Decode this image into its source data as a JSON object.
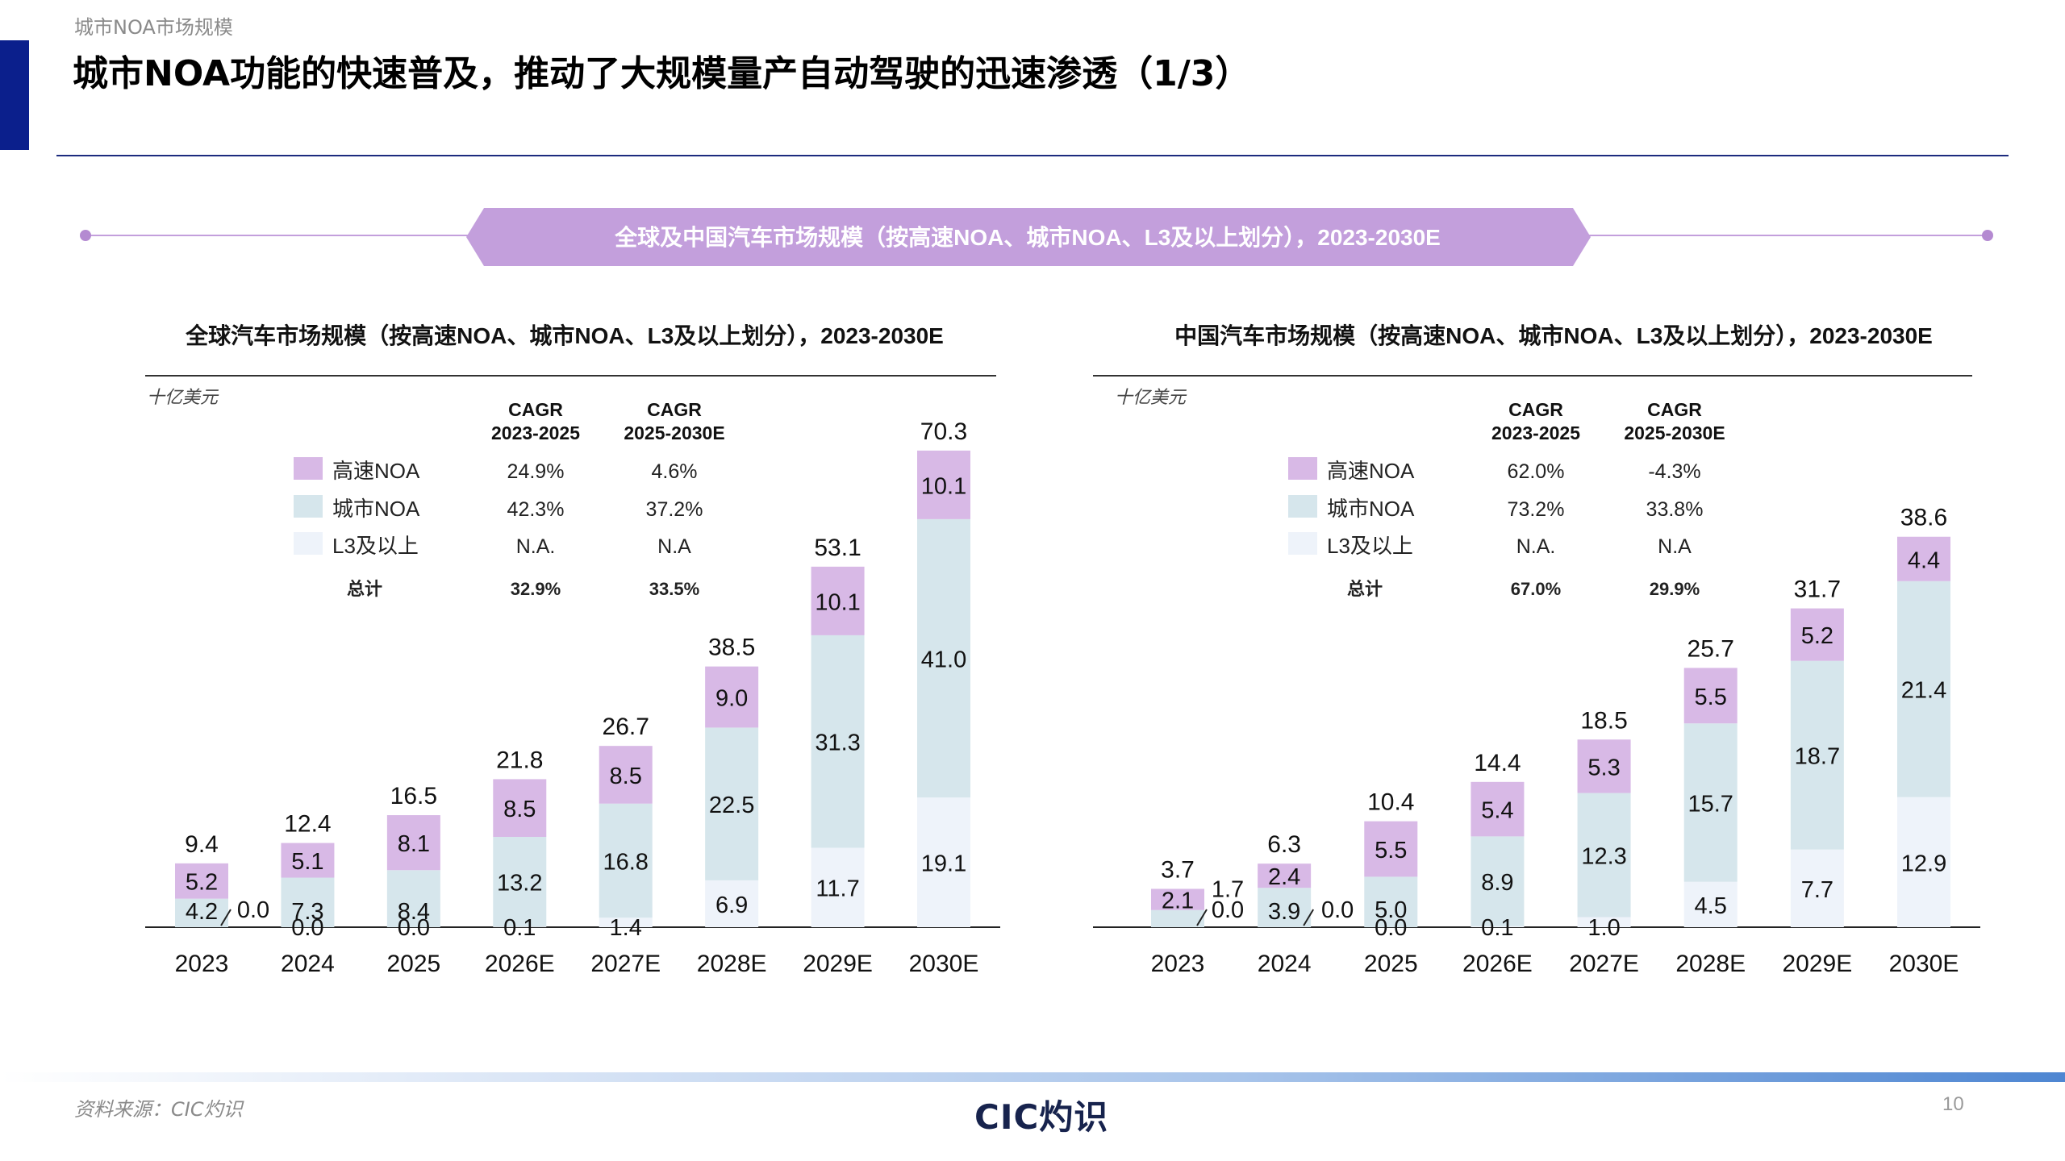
{
  "breadcrumb": "城市NOA市场规模",
  "page_title": "城市NOA功能的快速普及，推动了大规模量产自动驾驶的迅速渗透（1/3）",
  "section_banner": "全球及中国汽车市场规模（按高速NOA、城市NOA、L3及以上划分），2023-2030E",
  "footer": {
    "source": "资料来源：CIC灼识",
    "logo": "CIC灼识",
    "page_number": "10"
  },
  "colors": {
    "highway_noa": "#d8b9e6",
    "city_noa": "#d6e6ec",
    "l3_plus": "#eef3fa",
    "banner": "#c39fdc",
    "axis": "#222222",
    "accent": "#0b1f8c"
  },
  "chart_data": [
    {
      "type": "bar",
      "stacked": true,
      "title": "全球汽车市场规模（按高速NOA、城市NOA、L3及以上划分），2023-2030E",
      "unit_label": "十亿美元",
      "categories": [
        "2023",
        "2024",
        "2025",
        "2026E",
        "2027E",
        "2028E",
        "2029E",
        "2030E"
      ],
      "series": [
        {
          "name": "L3及以上",
          "values": [
            0.0,
            0.0,
            0.0,
            0.1,
            1.4,
            6.9,
            11.7,
            19.1
          ]
        },
        {
          "name": "城市NOA",
          "values": [
            4.2,
            7.3,
            8.4,
            13.2,
            16.8,
            22.5,
            31.3,
            41.0
          ]
        },
        {
          "name": "高速NOA",
          "values": [
            5.2,
            5.1,
            8.1,
            8.5,
            8.5,
            9.0,
            10.1,
            10.1
          ]
        }
      ],
      "totals": [
        9.4,
        12.4,
        16.5,
        21.8,
        26.7,
        38.5,
        53.1,
        70.3
      ],
      "cagr_table": {
        "headers": [
          "CAGR 2023-2025",
          "CAGR 2025-2030E"
        ],
        "rows": [
          {
            "label": "高速NOA",
            "values": [
              "24.9%",
              "4.6%"
            ]
          },
          {
            "label": "城市NOA",
            "values": [
              "42.3%",
              "37.2%"
            ]
          },
          {
            "label": "L3及以上",
            "values": [
              "N.A.",
              "N.A"
            ]
          },
          {
            "label": "总计",
            "values": [
              "32.9%",
              "33.5%"
            ]
          }
        ]
      },
      "legend": "top-left"
    },
    {
      "type": "bar",
      "stacked": true,
      "title": "中国汽车市场规模（按高速NOA、城市NOA、L3及以上划分），2023-2030E",
      "unit_label": "十亿美元",
      "categories": [
        "2023",
        "2024",
        "2025",
        "2026E",
        "2027E",
        "2028E",
        "2029E",
        "2030E"
      ],
      "series": [
        {
          "name": "L3及以上",
          "values": [
            0.0,
            0.0,
            0.0,
            0.1,
            1.0,
            4.5,
            7.7,
            12.9
          ]
        },
        {
          "name": "城市NOA",
          "values": [
            1.7,
            3.9,
            5.0,
            8.9,
            12.3,
            15.7,
            18.7,
            21.4
          ]
        },
        {
          "name": "高速NOA",
          "values": [
            2.1,
            2.4,
            5.5,
            5.4,
            5.3,
            5.5,
            5.2,
            4.4
          ]
        }
      ],
      "totals": [
        3.7,
        6.3,
        10.4,
        14.4,
        18.5,
        25.7,
        31.7,
        38.6
      ],
      "cagr_table": {
        "headers": [
          "CAGR 2023-2025",
          "CAGR 2025-2030E"
        ],
        "rows": [
          {
            "label": "高速NOA",
            "values": [
              "62.0%",
              "-4.3%"
            ]
          },
          {
            "label": "城市NOA",
            "values": [
              "73.2%",
              "33.8%"
            ]
          },
          {
            "label": "L3及以上",
            "values": [
              "N.A.",
              "N.A"
            ]
          },
          {
            "label": "总计",
            "values": [
              "67.0%",
              "29.9%"
            ]
          }
        ]
      },
      "legend": "top-left"
    }
  ]
}
